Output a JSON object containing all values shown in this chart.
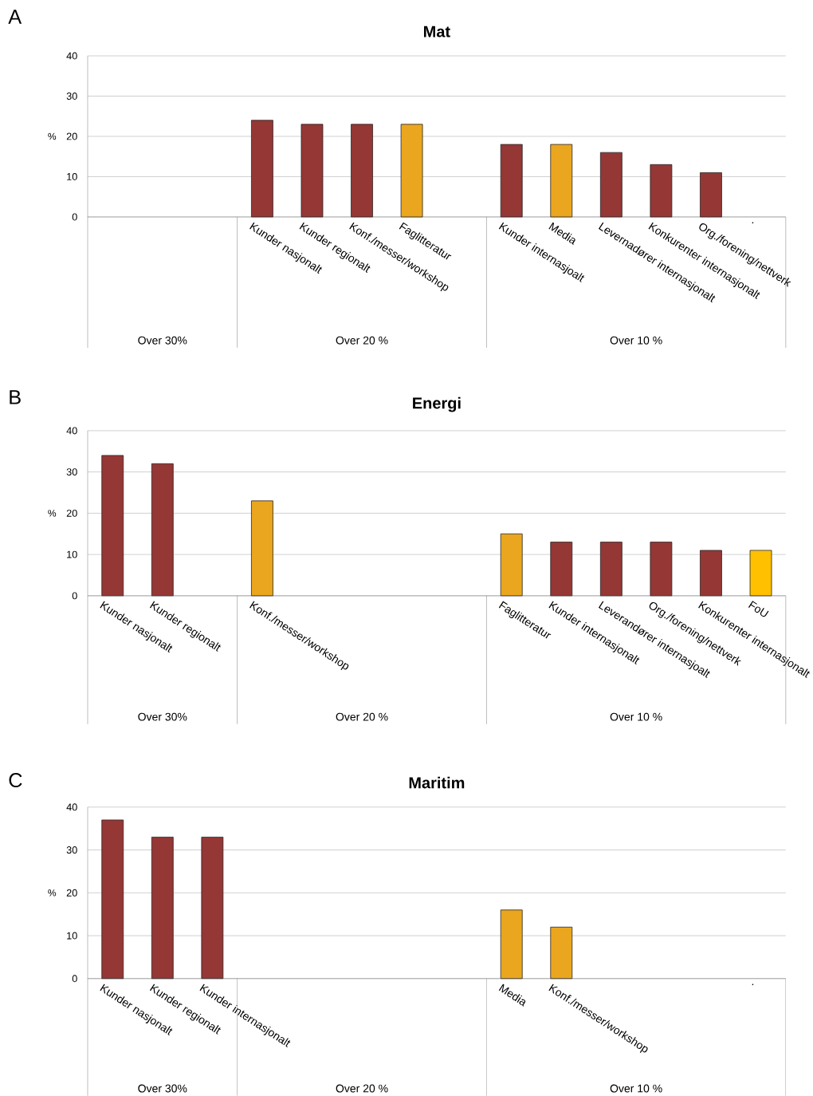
{
  "chart_data": [
    {
      "type": "bar",
      "title": "Mat",
      "ylabel": "%",
      "ylim": [
        0,
        40
      ],
      "yticks": [
        0,
        10,
        20,
        30,
        40
      ],
      "grid": "y",
      "categories": [
        null,
        null,
        null,
        "Kunder nasjonalt",
        "Kunder regionalt",
        "Konf./messer/workshop",
        "Faglitteratur",
        null,
        "Kunder internasjoalt",
        "Media",
        "Levernadører internasjonalt",
        "Konkurenter internasjonalt",
        "Org./forening/nettverk",
        "."
      ],
      "values": [
        null,
        null,
        null,
        24,
        23,
        23,
        23,
        null,
        18,
        18,
        16,
        13,
        11,
        null
      ],
      "colors": [
        null,
        null,
        null,
        "#953735",
        "#953735",
        "#953735",
        "#eaa61e",
        null,
        "#953735",
        "#eaa61e",
        "#953735",
        "#953735",
        "#953735",
        null
      ],
      "annotations": [
        "A",
        "Over 30%",
        "Over 20 %",
        "Over 10 %"
      ]
    },
    {
      "type": "bar",
      "title": "Energi",
      "ylabel": "%",
      "ylim": [
        0,
        40
      ],
      "yticks": [
        0,
        10,
        20,
        30,
        40
      ],
      "grid": "y",
      "categories": [
        "Kunder nasjonalt",
        "Kunder regionalt",
        null,
        "Konf./messer/workshop",
        null,
        null,
        null,
        null,
        "Faglitteratur",
        "Kunder internasjonalt",
        "Leverandører internasjoalt",
        "Org./forening/nettverk",
        "Konkurenter internasjonalt",
        "FoU"
      ],
      "values": [
        34,
        32,
        null,
        23,
        null,
        null,
        null,
        null,
        15,
        13,
        13,
        13,
        11,
        11
      ],
      "colors": [
        "#953735",
        "#953735",
        null,
        "#eaa61e",
        null,
        null,
        null,
        null,
        "#eaa61e",
        "#953735",
        "#953735",
        "#953735",
        "#953735",
        "#ffc000"
      ],
      "annotations": [
        "B",
        "Over 30%",
        "Over 20 %",
        "Over 10 %"
      ]
    },
    {
      "type": "bar",
      "title": "Maritim",
      "ylabel": "%",
      "ylim": [
        0,
        40
      ],
      "yticks": [
        0,
        10,
        20,
        30,
        40
      ],
      "grid": "y",
      "categories": [
        "Kunder nasjonalt",
        "Kunder regionalt",
        "Kunder internasjonalt",
        null,
        null,
        null,
        null,
        null,
        "Media",
        "Konf./messer/workshop",
        null,
        null,
        null,
        "."
      ],
      "values": [
        37,
        33,
        33,
        null,
        null,
        null,
        null,
        null,
        16,
        12,
        null,
        null,
        null,
        null
      ],
      "colors": [
        "#953735",
        "#953735",
        "#953735",
        null,
        null,
        null,
        null,
        null,
        "#eaa61e",
        "#eaa61e",
        null,
        null,
        null,
        null
      ],
      "annotations": [
        "C",
        "Over 30%",
        "Over 20 %",
        "Over 10 %"
      ]
    }
  ]
}
